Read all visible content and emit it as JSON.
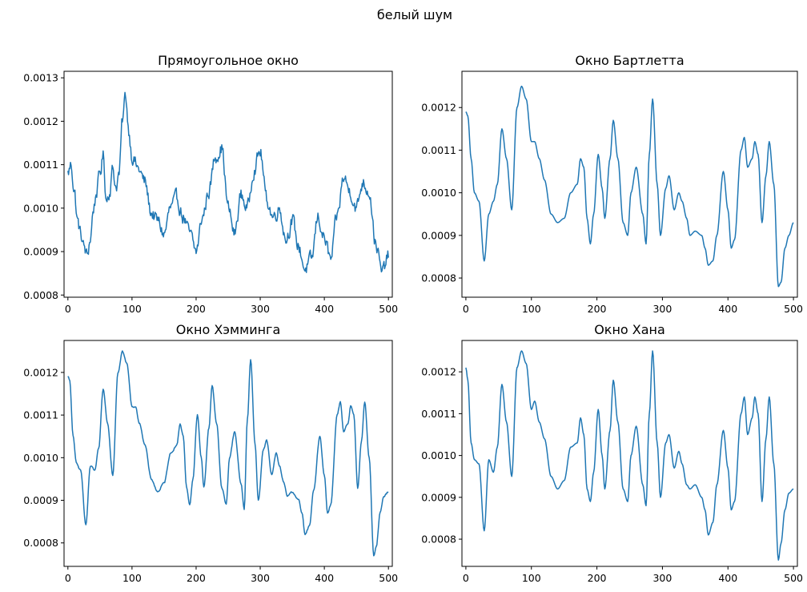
{
  "figure": {
    "title": "белый шум"
  },
  "chart_data": [
    {
      "type": "line",
      "title": "Прямоугольное окно",
      "xlabel": "",
      "ylabel": "",
      "xlim": [
        -6,
        506
      ],
      "ylim": [
        0.000795,
        0.001315
      ],
      "xticks": [
        0,
        100,
        200,
        300,
        400,
        500
      ],
      "yticks": [
        0.0008,
        0.0009,
        0.001,
        0.0011,
        0.0012,
        0.0013
      ],
      "ytick_labels": [
        "0.0008",
        "0.0009",
        "0.0010",
        "0.0011",
        "0.0012",
        "0.0013"
      ],
      "grid": false,
      "series": [
        {
          "color": "#1f77b4",
          "noise": 2.8e-05,
          "x": [
            0,
            5,
            10,
            15,
            20,
            25,
            30,
            35,
            40,
            45,
            50,
            55,
            60,
            65,
            70,
            75,
            80,
            85,
            90,
            95,
            100,
            110,
            120,
            130,
            140,
            150,
            160,
            170,
            180,
            190,
            200,
            210,
            220,
            230,
            240,
            250,
            260,
            270,
            280,
            290,
            300,
            310,
            320,
            330,
            340,
            350,
            360,
            370,
            380,
            390,
            400,
            410,
            420,
            430,
            440,
            450,
            460,
            470,
            480,
            490,
            500
          ],
          "y": [
            0.00108,
            0.0011,
            0.00104,
            0.00097,
            0.00094,
            0.00091,
            0.00089,
            0.00093,
            0.001,
            0.00104,
            0.00108,
            0.00112,
            0.00102,
            0.00104,
            0.00109,
            0.00105,
            0.00108,
            0.0012,
            0.00126,
            0.00118,
            0.00112,
            0.00109,
            0.00106,
            0.00099,
            0.00097,
            0.00094,
            0.001,
            0.00102,
            0.00098,
            0.00094,
            0.0009,
            0.00098,
            0.00104,
            0.00112,
            0.00114,
            0.001,
            0.00094,
            0.00103,
            0.001,
            0.00109,
            0.00113,
            0.00102,
            0.00098,
            0.001,
            0.00093,
            0.00097,
            0.00091,
            0.00086,
            0.00088,
            0.00098,
            0.00093,
            0.00088,
            0.00098,
            0.00107,
            0.00104,
            0.001,
            0.00106,
            0.00104,
            0.00092,
            0.00085,
            0.00089
          ]
        }
      ]
    },
    {
      "type": "line",
      "title": "Окно Бартлетта",
      "xlabel": "",
      "ylabel": "",
      "xlim": [
        -6,
        506
      ],
      "ylim": [
        0.000755,
        0.001285
      ],
      "xticks": [
        0,
        100,
        200,
        300,
        400,
        500
      ],
      "yticks": [
        0.0008,
        0.0009,
        0.001,
        0.0011,
        0.0012
      ],
      "ytick_labels": [
        "0.0008",
        "0.0009",
        "0.0010",
        "0.0011",
        "0.0012"
      ],
      "grid": false,
      "series": [
        {
          "color": "#1f77b4",
          "noise": 0,
          "x": [
            0,
            3,
            8,
            13,
            20,
            28,
            35,
            42,
            48,
            55,
            62,
            70,
            78,
            85,
            92,
            100,
            105,
            112,
            120,
            130,
            140,
            150,
            160,
            170,
            175,
            180,
            185,
            190,
            195,
            202,
            208,
            212,
            220,
            225,
            232,
            240,
            247,
            252,
            260,
            270,
            275,
            280,
            285,
            292,
            297,
            305,
            310,
            318,
            325,
            330,
            337,
            342,
            350,
            360,
            365,
            370,
            377,
            383,
            393,
            400,
            405,
            410,
            420,
            425,
            430,
            437,
            441,
            446,
            452,
            458,
            463,
            470,
            477,
            481,
            487,
            493,
            500
          ],
          "y": [
            0.00119,
            0.00118,
            0.00108,
            0.001,
            0.00098,
            0.00084,
            0.00095,
            0.00098,
            0.00102,
            0.00115,
            0.00108,
            0.00096,
            0.0012,
            0.00125,
            0.00122,
            0.00112,
            0.00112,
            0.00108,
            0.00103,
            0.00095,
            0.00093,
            0.00094,
            0.001,
            0.00102,
            0.00108,
            0.00106,
            0.00094,
            0.00088,
            0.00095,
            0.00109,
            0.00101,
            0.00094,
            0.00108,
            0.00117,
            0.00108,
            0.00093,
            0.0009,
            0.001,
            0.00106,
            0.00095,
            0.00088,
            0.00109,
            0.00122,
            0.00102,
            0.0009,
            0.00101,
            0.00104,
            0.00096,
            0.001,
            0.00098,
            0.00094,
            0.0009,
            0.00091,
            0.0009,
            0.00087,
            0.00083,
            0.00084,
            0.0009,
            0.00105,
            0.00096,
            0.00087,
            0.00089,
            0.0011,
            0.00113,
            0.00106,
            0.00108,
            0.00112,
            0.00109,
            0.00093,
            0.00104,
            0.00112,
            0.00102,
            0.00078,
            0.00079,
            0.00087,
            0.0009,
            0.00093
          ]
        }
      ]
    },
    {
      "type": "line",
      "title": "Окно Хэмминга",
      "xlabel": "",
      "ylabel": "",
      "xlim": [
        -6,
        506
      ],
      "ylim": [
        0.000745,
        0.001275
      ],
      "xticks": [
        0,
        100,
        200,
        300,
        400,
        500
      ],
      "yticks": [
        0.0008,
        0.0009,
        0.001,
        0.0011,
        0.0012
      ],
      "ytick_labels": [
        "0.0008",
        "0.0009",
        "0.0010",
        "0.0011",
        "0.0012"
      ],
      "grid": false,
      "series": [
        {
          "color": "#1f77b4",
          "noise": 3.5e-06,
          "x": [
            0,
            3,
            8,
            13,
            20,
            28,
            35,
            42,
            48,
            55,
            62,
            70,
            78,
            85,
            92,
            100,
            105,
            112,
            120,
            130,
            140,
            150,
            160,
            170,
            175,
            180,
            185,
            190,
            195,
            202,
            208,
            212,
            220,
            225,
            232,
            240,
            247,
            252,
            260,
            270,
            275,
            280,
            285,
            292,
            297,
            305,
            310,
            318,
            325,
            330,
            337,
            342,
            350,
            360,
            365,
            370,
            377,
            383,
            393,
            400,
            405,
            410,
            420,
            425,
            430,
            437,
            441,
            446,
            452,
            458,
            463,
            470,
            477,
            481,
            487,
            493,
            500
          ],
          "y": [
            0.00119,
            0.00118,
            0.00105,
            0.00099,
            0.00097,
            0.00084,
            0.00098,
            0.00097,
            0.00102,
            0.00116,
            0.00108,
            0.00096,
            0.0012,
            0.00125,
            0.00122,
            0.00112,
            0.00112,
            0.00108,
            0.00103,
            0.00095,
            0.00092,
            0.00094,
            0.00101,
            0.00103,
            0.00108,
            0.00105,
            0.00093,
            0.00089,
            0.00095,
            0.0011,
            0.001,
            0.00093,
            0.00107,
            0.00117,
            0.00108,
            0.00093,
            0.00089,
            0.001,
            0.00106,
            0.00094,
            0.00088,
            0.00109,
            0.00123,
            0.00103,
            0.0009,
            0.00102,
            0.00104,
            0.00096,
            0.00101,
            0.00098,
            0.00094,
            0.00091,
            0.00092,
            0.0009,
            0.00087,
            0.00082,
            0.00084,
            0.00092,
            0.00105,
            0.00096,
            0.00087,
            0.00089,
            0.0011,
            0.00113,
            0.00106,
            0.00108,
            0.00112,
            0.0011,
            0.00093,
            0.00104,
            0.00113,
            0.001,
            0.00077,
            0.00079,
            0.00087,
            0.00091,
            0.00092
          ]
        }
      ]
    },
    {
      "type": "line",
      "title": "Окно Хана",
      "xlabel": "",
      "ylabel": "",
      "xlim": [
        -6,
        506
      ],
      "ylim": [
        0.000735,
        0.001275
      ],
      "xticks": [
        0,
        100,
        200,
        300,
        400,
        500
      ],
      "yticks": [
        0.0008,
        0.0009,
        0.001,
        0.0011,
        0.0012
      ],
      "ytick_labels": [
        "0.0008",
        "0.0009",
        "0.0010",
        "0.0011",
        "0.0012"
      ],
      "grid": false,
      "series": [
        {
          "color": "#1f77b4",
          "noise": 0,
          "x": [
            0,
            3,
            8,
            13,
            20,
            28,
            35,
            42,
            48,
            55,
            62,
            70,
            78,
            85,
            92,
            100,
            105,
            112,
            120,
            130,
            140,
            150,
            160,
            170,
            175,
            180,
            185,
            190,
            195,
            202,
            208,
            212,
            220,
            225,
            232,
            240,
            247,
            252,
            260,
            270,
            275,
            280,
            285,
            292,
            297,
            305,
            310,
            318,
            325,
            330,
            337,
            342,
            350,
            360,
            365,
            370,
            377,
            383,
            393,
            400,
            405,
            410,
            420,
            425,
            430,
            437,
            441,
            446,
            452,
            458,
            463,
            470,
            477,
            481,
            487,
            493,
            500
          ],
          "y": [
            0.00121,
            0.00118,
            0.00103,
            0.00099,
            0.00098,
            0.00082,
            0.00099,
            0.00096,
            0.00102,
            0.00117,
            0.00108,
            0.00095,
            0.00121,
            0.00125,
            0.00122,
            0.00111,
            0.00113,
            0.00108,
            0.00104,
            0.00095,
            0.00092,
            0.00094,
            0.00102,
            0.00103,
            0.00109,
            0.00105,
            0.00092,
            0.00089,
            0.00096,
            0.00111,
            0.001,
            0.00092,
            0.00106,
            0.00118,
            0.00108,
            0.00092,
            0.00089,
            0.001,
            0.00107,
            0.00093,
            0.00088,
            0.0011,
            0.00125,
            0.00103,
            0.0009,
            0.00103,
            0.00105,
            0.00097,
            0.00101,
            0.00098,
            0.00093,
            0.00092,
            0.00093,
            0.0009,
            0.00087,
            0.00081,
            0.00084,
            0.00093,
            0.00106,
            0.00097,
            0.00087,
            0.00089,
            0.0011,
            0.00114,
            0.00105,
            0.00109,
            0.00114,
            0.0011,
            0.00089,
            0.00104,
            0.00114,
            0.00098,
            0.00075,
            0.00079,
            0.00087,
            0.00091,
            0.00092
          ]
        }
      ]
    }
  ]
}
